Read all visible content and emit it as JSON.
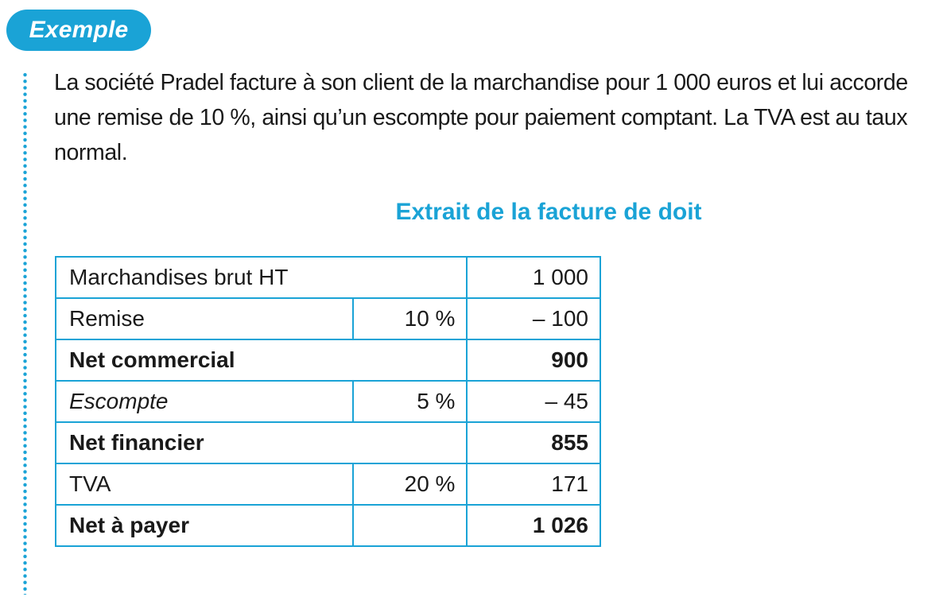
{
  "badge": {
    "label": "Exemple"
  },
  "intro": {
    "before_keyword": "La société Pradel facture à son client de la marchandise pour 1 000 euros et lui accorde une remise de 10 %, ainsi qu’un ",
    "keyword": "escompte",
    "after_keyword": " pour paiement comptant. La TVA est au taux normal."
  },
  "table": {
    "title": "Extrait de la facture de doit",
    "rows": [
      {
        "label": "Marchandises brut HT",
        "rate": "",
        "value": "1 000"
      },
      {
        "label": "Remise",
        "rate": "10 %",
        "value": "– 100"
      },
      {
        "label": "Net commercial",
        "rate": "",
        "value": "900"
      },
      {
        "label": "Escompte",
        "rate": "5 %",
        "value": "– 45"
      },
      {
        "label": "Net financier",
        "rate": "",
        "value": "855"
      },
      {
        "label": "TVA",
        "rate": "20 %",
        "value": "171"
      },
      {
        "label": "Net à payer",
        "rate": "",
        "value": "1 026"
      }
    ]
  },
  "colors": {
    "accent": "#1aa3d6",
    "text": "#1a1a1a"
  }
}
